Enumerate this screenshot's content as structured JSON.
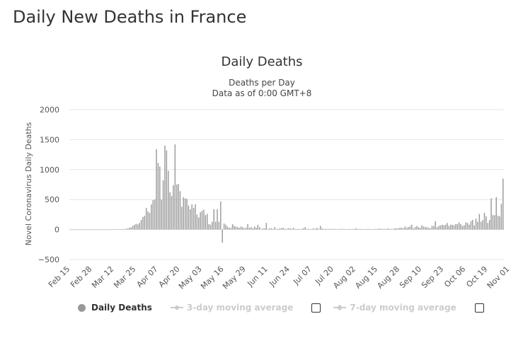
{
  "page": {
    "title": "Daily New Deaths in France"
  },
  "chart_data": {
    "type": "bar",
    "title": "Daily Deaths",
    "subtitle_lines": [
      "Deaths per Day",
      "Data as of 0:00 GMT+8"
    ],
    "ylabel": "Novel Coronavirus Daily Deaths",
    "xlabel": "",
    "ylim": [
      -500,
      2000
    ],
    "yticks": [
      2000,
      1500,
      1000,
      500,
      0,
      -500
    ],
    "ytick_labels": [
      "2000",
      "1500",
      "1000",
      "500",
      "0",
      "−500"
    ],
    "x_tick_labels": [
      "Feb 15",
      "Feb 28",
      "Mar 12",
      "Mar 25",
      "Apr 07",
      "Apr 20",
      "May 03",
      "May 16",
      "May 29",
      "Jun 11",
      "Jun 24",
      "Jul 07",
      "Jul 20",
      "Aug 02",
      "Aug 15",
      "Aug 28",
      "Sep 10",
      "Sep 23",
      "Oct 06",
      "Oct 19",
      "Nov 01"
    ],
    "grid": true,
    "bar_color": "#999999",
    "series": [
      {
        "name": "Daily Deaths",
        "start_date": "Feb 15",
        "values": [
          0,
          0,
          0,
          0,
          0,
          0,
          0,
          0,
          0,
          0,
          0,
          0,
          0,
          0,
          0,
          0,
          0,
          0,
          0,
          0,
          0,
          0,
          0,
          0,
          0,
          0,
          1,
          2,
          3,
          5,
          4,
          8,
          10,
          12,
          18,
          30,
          35,
          60,
          80,
          95,
          85,
          110,
          160,
          210,
          230,
          360,
          300,
          280,
          420,
          490,
          500,
          1340,
          1110,
          1050,
          500,
          820,
          1400,
          1320,
          980,
          620,
          560,
          740,
          1420,
          750,
          760,
          640,
          380,
          540,
          520,
          510,
          400,
          340,
          420,
          360,
          420,
          250,
          200,
          290,
          310,
          330,
          240,
          260,
          90,
          80,
          130,
          340,
          130,
          340,
          130,
          470,
          -220,
          100,
          80,
          50,
          30,
          30,
          90,
          60,
          50,
          40,
          30,
          50,
          40,
          20,
          30,
          90,
          30,
          40,
          20,
          50,
          30,
          80,
          40,
          10,
          20,
          20,
          110,
          10,
          20,
          20,
          10,
          40,
          10,
          10,
          20,
          20,
          30,
          10,
          10,
          20,
          20,
          10,
          30,
          10,
          10,
          10,
          5,
          10,
          20,
          40,
          10,
          10,
          5,
          10,
          20,
          10,
          30,
          10,
          60,
          20,
          10,
          10,
          10,
          10,
          10,
          10,
          10,
          10,
          5,
          10,
          10,
          10,
          10,
          5,
          5,
          10,
          5,
          5,
          10,
          20,
          10,
          10,
          10,
          10,
          5,
          5,
          10,
          10,
          5,
          5,
          10,
          10,
          10,
          20,
          10,
          10,
          10,
          10,
          20,
          10,
          10,
          10,
          20,
          20,
          20,
          30,
          30,
          20,
          50,
          30,
          40,
          50,
          80,
          20,
          40,
          60,
          40,
          30,
          70,
          50,
          40,
          40,
          30,
          20,
          60,
          60,
          140,
          40,
          60,
          70,
          80,
          70,
          80,
          110,
          60,
          80,
          80,
          70,
          90,
          90,
          120,
          90,
          60,
          70,
          120,
          110,
          80,
          140,
          160,
          70,
          180,
          130,
          260,
          130,
          160,
          280,
          220,
          110,
          160,
          520,
          240,
          240,
          540,
          230,
          220,
          430,
          850
        ]
      }
    ],
    "legend": [
      {
        "name": "Daily Deaths",
        "active": true
      },
      {
        "name": "3-day moving average",
        "active": false
      },
      {
        "name": "7-day moving average",
        "active": false
      }
    ]
  }
}
